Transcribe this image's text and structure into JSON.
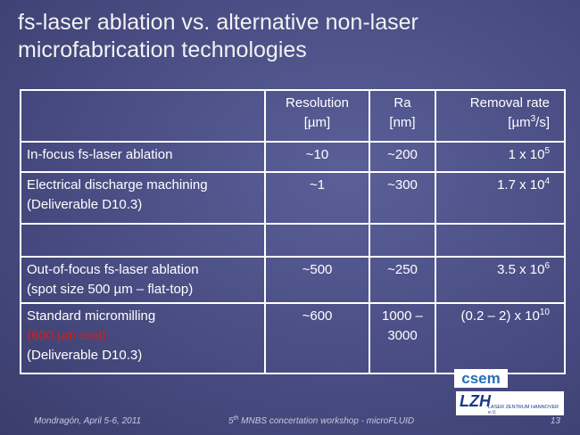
{
  "header": {
    "title_lines": [
      "fs-laser ablation vs. alternative non-laser",
      "microfabrication technologies"
    ]
  },
  "table": {
    "rows": [
      [
        {
          "lines": []
        },
        {
          "lines": [
            "Resolution",
            "[µm]"
          ]
        },
        {
          "lines": [
            "Ra",
            "[nm]"
          ]
        },
        {
          "lines": [
            "Removal rate",
            {
              "text": "[µm",
              "sup": "3",
              "after": "/s]"
            }
          ]
        }
      ],
      [
        {
          "lines": [
            "In-focus fs-laser ablation"
          ]
        },
        {
          "lines": [
            "~10"
          ]
        },
        {
          "lines": [
            "~200"
          ]
        },
        {
          "lines": [
            {
              "text": "1 x 10",
              "sup": "5"
            }
          ]
        }
      ],
      [
        {
          "lines": [
            "Electrical discharge machining",
            "(Deliverable D10.3)"
          ]
        },
        {
          "lines": [
            "~1"
          ]
        },
        {
          "lines": [
            "~300"
          ]
        },
        {
          "lines": [
            {
              "text": "1.7 x 10",
              "sup": "4"
            }
          ]
        }
      ],
      [
        {
          "lines": []
        },
        {
          "lines": []
        },
        {
          "lines": []
        },
        {
          "lines": []
        }
      ],
      [
        {
          "lines": [
            "Out-of-focus fs-laser ablation",
            "(spot size 500 µm – flat-top)"
          ]
        },
        {
          "lines": [
            "~500"
          ]
        },
        {
          "lines": [
            "~250"
          ]
        },
        {
          "lines": [
            {
              "text": "3.5 x 10",
              "sup": "6"
            }
          ]
        }
      ],
      [
        {
          "lines": [
            "Standard micromilling",
            {
              "text": "(600 µm tool)",
              "color": "#d0201c"
            },
            "(Deliverable D10.3)"
          ]
        },
        {
          "lines": [
            "~600"
          ]
        },
        {
          "lines": [
            "1000 –",
            "3000"
          ]
        },
        {
          "lines": [
            {
              "text": "(0.2 – 2) x 10",
              "sup": "10"
            }
          ]
        }
      ]
    ]
  },
  "logos": {
    "csem": "csem",
    "lzh": "LZH",
    "lzh_subtitle": "LASER ZENTRUM HANNOVER e.V."
  },
  "footer": {
    "left": "Mondragón, April 5-6, 2011",
    "center": {
      "text": "5",
      "sup": "th",
      "after": " MNBS concertation workshop - microFLUID"
    },
    "page": "13"
  }
}
